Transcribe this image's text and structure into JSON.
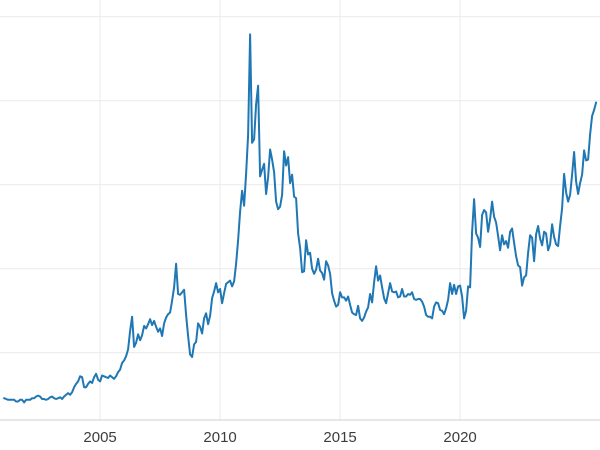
{
  "chart_data": {
    "type": "line",
    "title": "",
    "x_tick_labels": [
      "2005",
      "2010",
      "2015",
      "2020"
    ],
    "x_tick_years": [
      2005,
      2010,
      2015,
      2020
    ],
    "xlim": [
      2000.83,
      2025.83
    ],
    "ylim": [
      2,
      52
    ],
    "y_gridline_values": [
      10,
      20,
      30,
      40,
      50
    ],
    "grid": true,
    "legend_position": "none",
    "line_color": "#1f77b4",
    "line_width": 2,
    "grid_color": "#e9e9e9",
    "axis_line_color": "#cfcfcf",
    "tick_label_color": "#3d3d3d",
    "background_color": "#ffffff",
    "x_start_year": 2001.0,
    "x_step_years": 0.0833333,
    "values": [
      4.6,
      4.5,
      4.4,
      4.4,
      4.4,
      4.4,
      4.2,
      4.2,
      4.4,
      4.4,
      4.1,
      4.4,
      4.4,
      4.4,
      4.6,
      4.6,
      4.8,
      4.9,
      4.8,
      4.5,
      4.5,
      4.4,
      4.5,
      4.7,
      4.8,
      4.6,
      4.5,
      4.6,
      4.7,
      4.5,
      4.8,
      5.0,
      5.2,
      5.0,
      5.3,
      5.9,
      6.3,
      6.6,
      7.2,
      7.1,
      5.9,
      5.9,
      6.3,
      6.6,
      6.4,
      7.1,
      7.5,
      6.8,
      6.6,
      7.3,
      7.2,
      7.1,
      7.0,
      7.3,
      7.1,
      6.9,
      7.2,
      7.7,
      8.0,
      8.8,
      9.1,
      9.6,
      10.4,
      12.6,
      14.3,
      10.7,
      11.2,
      12.2,
      11.5,
      12.1,
      13.2,
      12.9,
      13.4,
      14.0,
      13.3,
      13.8,
      13.1,
      12.5,
      12.9,
      12.0,
      13.5,
      14.2,
      14.6,
      14.8,
      16.2,
      17.8,
      20.6,
      17.0,
      16.9,
      17.2,
      17.5,
      14.5,
      12.0,
      9.8,
      9.5,
      11.0,
      11.3,
      13.5,
      13.1,
      12.3,
      14.1,
      14.7,
      13.4,
      14.4,
      16.5,
      17.3,
      18.3,
      17.2,
      17.6,
      15.9,
      17.1,
      18.2,
      18.4,
      18.6,
      17.9,
      18.5,
      20.6,
      23.4,
      26.8,
      29.3,
      27.5,
      31.3,
      35.9,
      47.9,
      35.0,
      35.4,
      39.6,
      41.8,
      31.0,
      31.8,
      32.5,
      28.9,
      30.9,
      34.2,
      33.0,
      31.5,
      28.0,
      27.1,
      27.4,
      28.8,
      34.0,
      32.3,
      33.3,
      30.2,
      31.2,
      28.6,
      28.4,
      24.2,
      22.5,
      19.6,
      19.7,
      23.4,
      21.7,
      21.9,
      20.0,
      19.4,
      19.9,
      21.2,
      19.8,
      19.5,
      18.7,
      20.9,
      20.4,
      19.4,
      17.1,
      16.2,
      15.5,
      15.7,
      17.2,
      16.6,
      16.6,
      16.2,
      16.7,
      15.7,
      14.8,
      14.6,
      14.5,
      15.6,
      14.1,
      13.8,
      14.2,
      14.9,
      15.4,
      17.0,
      16.0,
      18.4,
      20.3,
      18.6,
      19.2,
      17.8,
      16.5,
      15.9,
      17.1,
      18.3,
      17.3,
      17.2,
      17.3,
      16.6,
      16.7,
      17.6,
      16.7,
      16.7,
      17.0,
      16.9,
      17.2,
      16.4,
      16.3,
      16.4,
      16.4,
      16.1,
      15.5,
      14.5,
      14.3,
      14.3,
      14.1,
      15.5,
      16.0,
      15.9,
      15.1,
      15.0,
      14.6,
      15.3,
      16.3,
      18.3,
      17.0,
      18.1,
      17.0,
      17.9,
      18.0,
      16.7,
      14.1,
      15.0,
      17.9,
      17.8,
      24.4,
      28.3,
      24.2,
      23.7,
      22.6,
      26.4,
      27.0,
      26.7,
      24.4,
      25.9,
      28.0,
      26.2,
      25.5,
      23.9,
      22.2,
      24.0,
      22.9,
      23.3,
      22.5,
      24.4,
      24.8,
      23.1,
      21.5,
      20.4,
      20.2,
      18.0,
      19.0,
      19.2,
      21.9,
      24.0,
      23.7,
      20.9,
      24.1,
      25.1,
      23.6,
      22.8,
      24.4,
      24.2,
      22.2,
      22.9,
      25.3,
      23.8,
      22.9,
      22.7,
      25.1,
      27.2,
      31.3,
      29.1,
      28.0,
      28.8,
      31.2,
      33.9,
      30.4,
      28.9,
      30.2,
      31.2,
      34.1,
      32.9,
      33.0,
      36.0,
      38.2,
      38.9,
      39.8
    ]
  }
}
